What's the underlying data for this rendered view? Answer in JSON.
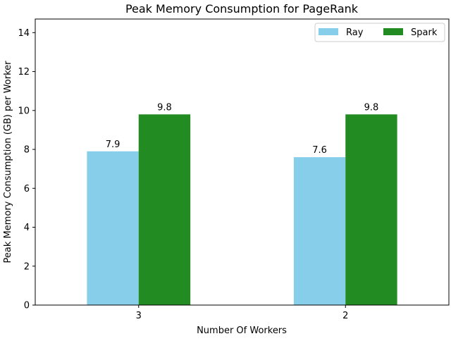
{
  "chart_data": {
    "type": "bar",
    "title": "Peak Memory Consumption for PageRank",
    "xlabel": "Number Of Workers",
    "ylabel": "Peak Memory Consumption (GB) per Worker",
    "categories": [
      "3",
      "2"
    ],
    "series": [
      {
        "name": "Ray",
        "values": [
          7.9,
          7.6
        ],
        "color": "#87CEEB"
      },
      {
        "name": "Spark",
        "values": [
          9.8,
          9.8
        ],
        "color": "#228B22"
      }
    ],
    "ylim": [
      0,
      14.7
    ],
    "yticks": [
      0,
      2,
      4,
      6,
      8,
      10,
      12,
      14
    ],
    "grid": false,
    "legend_position": "top-right"
  }
}
